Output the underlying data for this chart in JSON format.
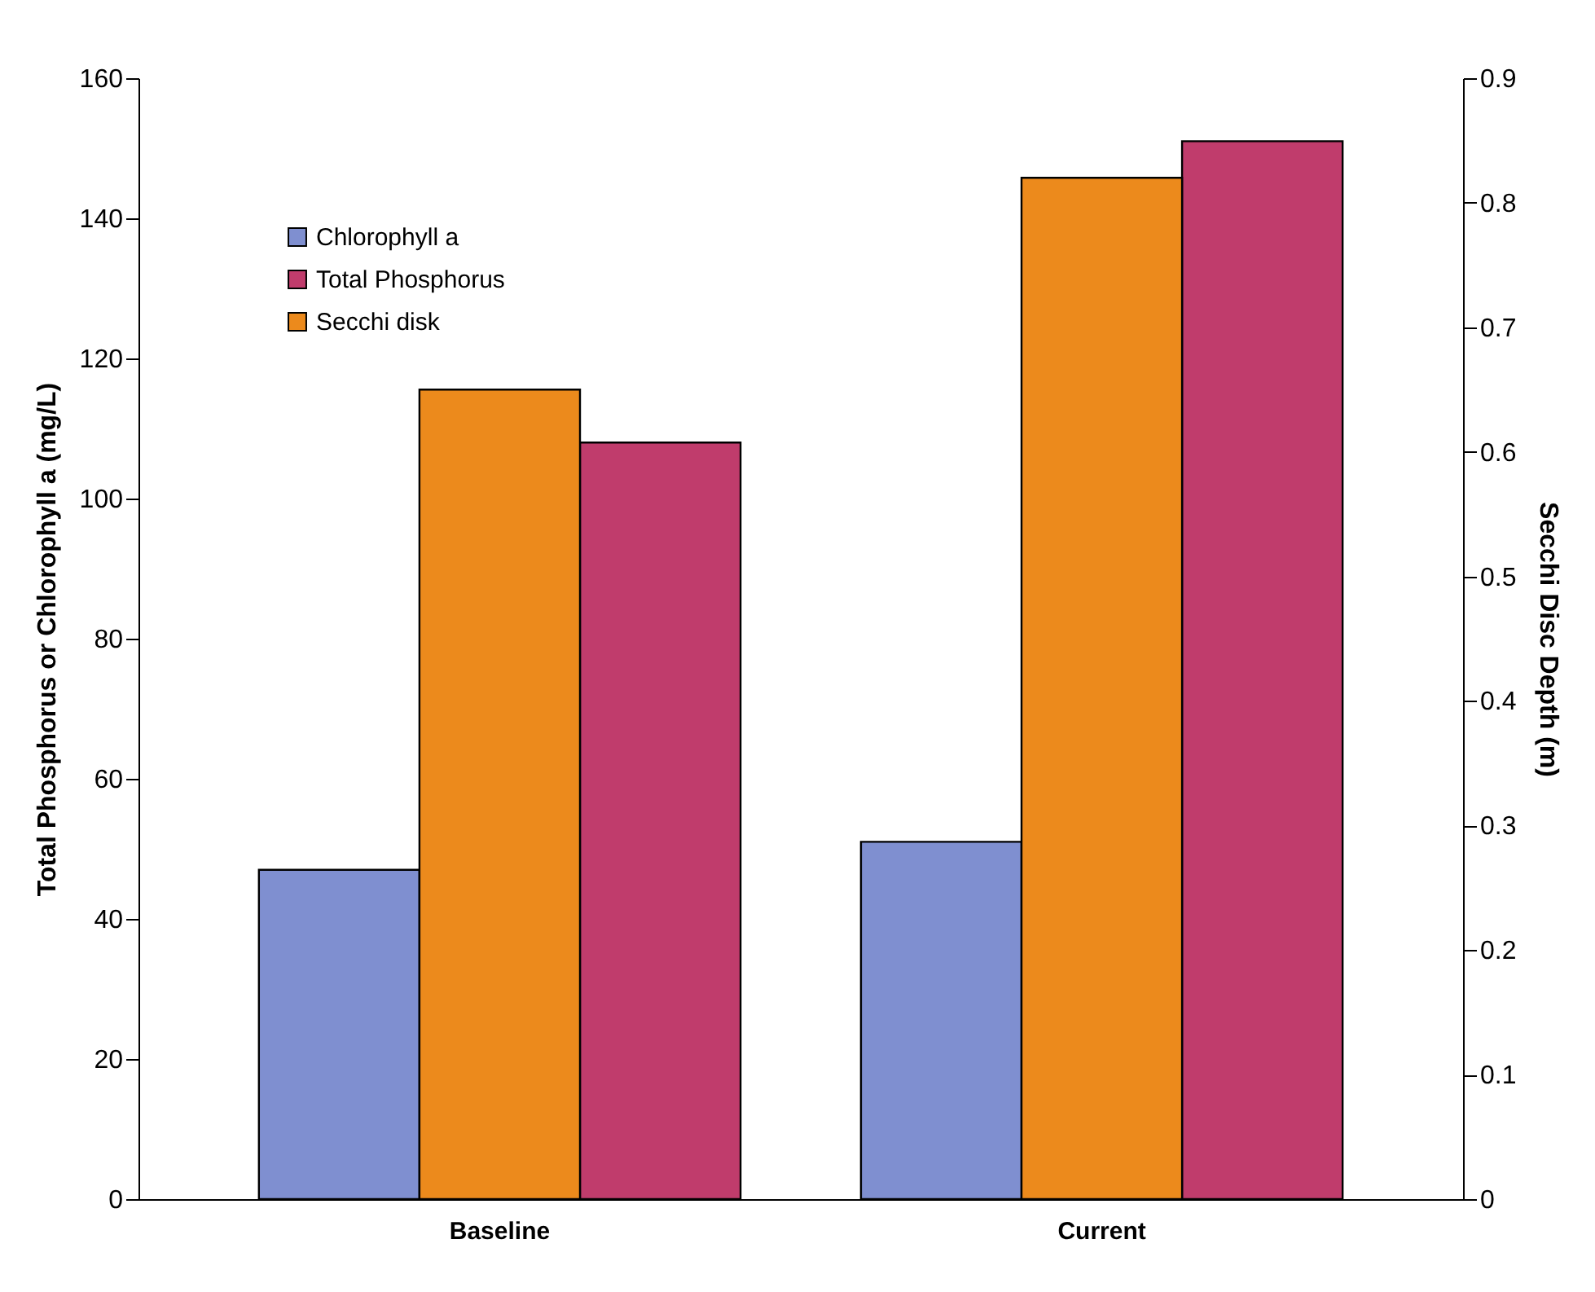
{
  "chart_data": {
    "type": "bar",
    "categories": [
      "Baseline",
      "Current"
    ],
    "ylabel": "Total Phosphorus or Chlorophyll a (mg/L)",
    "y2label": "Secchi Disc Depth (m)",
    "series": [
      {
        "name": "Chlorophyll a",
        "color": "#7f8fd0",
        "values": [
          47,
          51
        ]
      },
      {
        "name": "Secchi disk",
        "color": "#ec8a1c",
        "values": [
          0.65,
          0.82
        ],
        "axis": "y2"
      },
      {
        "name": "Total Phosphorus",
        "color": "#c03c6c",
        "values": [
          108,
          151
        ]
      }
    ],
    "ylim": [
      0,
      160
    ],
    "yticks": [
      0,
      20,
      40,
      60,
      80,
      100,
      120,
      140,
      160
    ],
    "y2lim": [
      0,
      0.9
    ],
    "y2ticks": [
      0,
      0.1,
      0.2,
      0.3,
      0.4,
      0.5,
      0.6,
      0.7,
      0.8,
      0.9
    ],
    "legend": "top left",
    "grid": false
  }
}
